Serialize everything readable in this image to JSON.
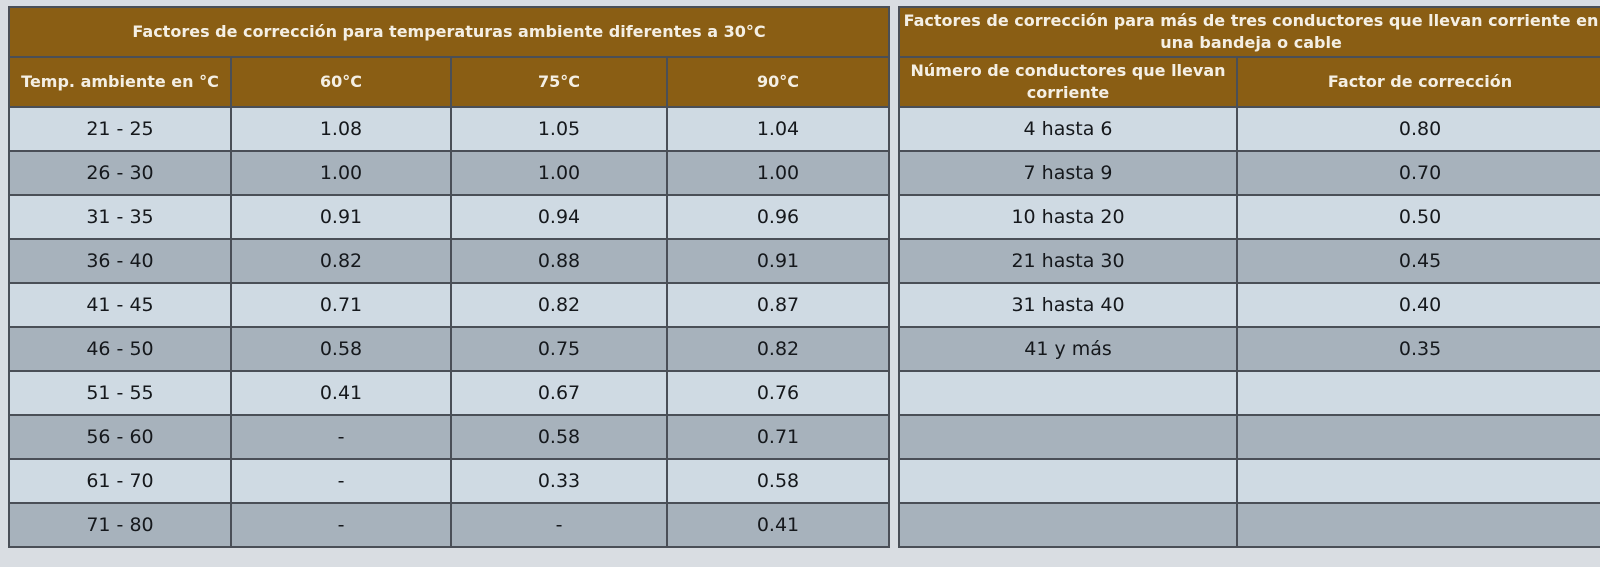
{
  "temperature_table": {
    "title": "Factores de corrección para temperaturas ambiente diferentes a 30°C",
    "headers": [
      "Temp. ambiente en °C",
      "60°C",
      "75°C",
      "90°C"
    ],
    "rows": [
      [
        "21 - 25",
        "1.08",
        "1.05",
        "1.04"
      ],
      [
        "26 - 30",
        "1.00",
        "1.00",
        "1.00"
      ],
      [
        "31 - 35",
        "0.91",
        "0.94",
        "0.96"
      ],
      [
        "36 - 40",
        "0.82",
        "0.88",
        "0.91"
      ],
      [
        "41 - 45",
        "0.71",
        "0.82",
        "0.87"
      ],
      [
        "46 - 50",
        "0.58",
        "0.75",
        "0.82"
      ],
      [
        "51 - 55",
        "0.41",
        "0.67",
        "0.76"
      ],
      [
        "56 - 60",
        "-",
        "0.58",
        "0.71"
      ],
      [
        "61 - 70",
        "-",
        "0.33",
        "0.58"
      ],
      [
        "71 - 80",
        "-",
        "-",
        "0.41"
      ]
    ]
  },
  "conductor_table": {
    "title": "Factores de corrección para más de tres conductores que llevan corriente en una bandeja o cable",
    "headers": [
      "Número de conductores que llevan corriente",
      "Factor de corrección"
    ],
    "rows": [
      [
        "4 hasta 6",
        "0.80"
      ],
      [
        "7 hasta 9",
        "0.70"
      ],
      [
        "10 hasta 20",
        "0.50"
      ],
      [
        "21 hasta 30",
        "0.45"
      ],
      [
        "31 hasta 40",
        "0.40"
      ],
      [
        "41 y más",
        "0.35"
      ],
      [
        "",
        ""
      ],
      [
        "",
        ""
      ],
      [
        "",
        ""
      ],
      [
        "",
        ""
      ]
    ]
  },
  "colors": {
    "header_bg": "#8a5e14",
    "header_text": "#f4efe4",
    "row_light": "#cfdae3",
    "row_dark": "#a7b2bc",
    "border": "#4a4f57"
  }
}
